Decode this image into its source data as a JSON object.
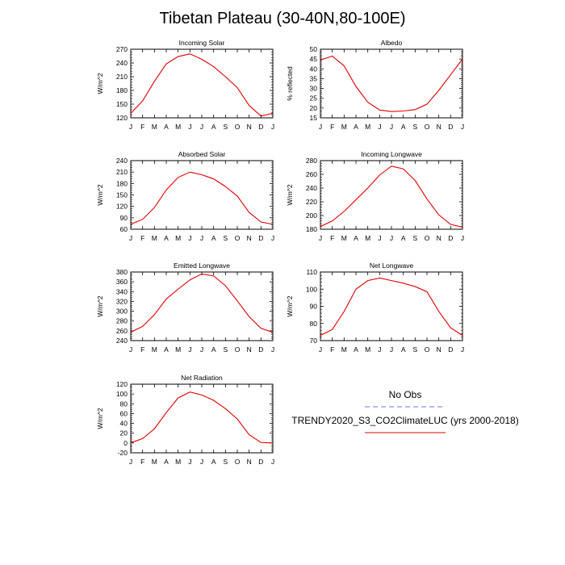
{
  "page": {
    "title": "Tibetan Plateau (30-40N,80-100E)"
  },
  "legend": {
    "entries": [
      {
        "label": "No Obs",
        "color": "#7070f0",
        "style": "dashed"
      },
      {
        "label": "TRENDY2020_S3_CO2ClimateLUC (yrs 2000-2018)",
        "color": "#e00000",
        "style": "solid"
      }
    ]
  },
  "chart_data": [
    {
      "type": "line",
      "title": "Incoming Solar",
      "ylabel": "W/m^2",
      "categories": [
        "J",
        "F",
        "M",
        "A",
        "M",
        "J",
        "J",
        "A",
        "S",
        "O",
        "N",
        "D",
        "J"
      ],
      "ylim": [
        120,
        270
      ],
      "yticks": [
        120,
        150,
        180,
        210,
        240,
        270
      ],
      "series": [
        {
          "color": "#e00000",
          "values": [
            130,
            157,
            200,
            238,
            254,
            260,
            248,
            232,
            210,
            186,
            147,
            124,
            130
          ]
        }
      ]
    },
    {
      "type": "line",
      "title": "Albedo",
      "ylabel": "% reflected",
      "categories": [
        "J",
        "F",
        "M",
        "A",
        "M",
        "J",
        "J",
        "A",
        "S",
        "O",
        "N",
        "D",
        "J"
      ],
      "ylim": [
        15,
        50
      ],
      "yticks": [
        15,
        20,
        25,
        30,
        35,
        40,
        45,
        50
      ],
      "series": [
        {
          "color": "#e00000",
          "values": [
            44.5,
            46.5,
            41.5,
            31,
            23,
            19,
            18.2,
            18.5,
            19.2,
            22,
            29,
            37,
            45
          ]
        }
      ]
    },
    {
      "type": "line",
      "title": "Absorbed Solar",
      "ylabel": "W/m^2",
      "categories": [
        "J",
        "F",
        "M",
        "A",
        "M",
        "J",
        "J",
        "A",
        "S",
        "O",
        "N",
        "D",
        "J"
      ],
      "ylim": [
        60,
        240
      ],
      "yticks": [
        60,
        90,
        120,
        150,
        180,
        210,
        240
      ],
      "series": [
        {
          "color": "#e00000",
          "values": [
            73,
            86,
            117,
            163,
            196,
            210,
            203,
            192,
            172,
            147,
            104,
            79,
            73
          ]
        }
      ]
    },
    {
      "type": "line",
      "title": "Incoming Longwave",
      "ylabel": "W/m^2",
      "categories": [
        "J",
        "F",
        "M",
        "A",
        "M",
        "J",
        "J",
        "A",
        "S",
        "O",
        "N",
        "D",
        "J"
      ],
      "ylim": [
        180,
        280
      ],
      "yticks": [
        180,
        200,
        220,
        240,
        260,
        280
      ],
      "series": [
        {
          "color": "#e00000",
          "values": [
            184,
            192,
            206,
            223,
            240,
            259,
            272,
            268,
            251,
            224,
            201,
            187,
            183
          ]
        }
      ]
    },
    {
      "type": "line",
      "title": "Emitted Longwave",
      "ylabel": "W/m^2",
      "categories": [
        "J",
        "F",
        "M",
        "A",
        "M",
        "J",
        "J",
        "A",
        "S",
        "O",
        "N",
        "D",
        "J"
      ],
      "ylim": [
        240,
        380
      ],
      "yticks": [
        240,
        260,
        280,
        300,
        320,
        340,
        360,
        380
      ],
      "series": [
        {
          "color": "#e00000",
          "values": [
            257,
            269,
            293,
            325,
            345,
            364,
            376,
            372,
            352,
            321,
            289,
            265,
            257
          ]
        }
      ]
    },
    {
      "type": "line",
      "title": "Net Longwave",
      "ylabel": "W/m^2",
      "categories": [
        "J",
        "F",
        "M",
        "A",
        "M",
        "J",
        "J",
        "A",
        "S",
        "O",
        "N",
        "D",
        "J"
      ],
      "ylim": [
        70,
        110
      ],
      "yticks": [
        70,
        80,
        90,
        100,
        110
      ],
      "series": [
        {
          "color": "#e00000",
          "values": [
            73,
            76.5,
            87,
            100,
            105,
            106.5,
            105,
            103.5,
            101.5,
            98.5,
            87,
            77.5,
            73
          ]
        }
      ]
    },
    {
      "type": "line",
      "title": "Net Radiation",
      "ylabel": "W/m^2",
      "categories": [
        "J",
        "F",
        "M",
        "A",
        "M",
        "J",
        "J",
        "A",
        "S",
        "O",
        "N",
        "D",
        "J"
      ],
      "ylim": [
        -20,
        120
      ],
      "yticks": [
        -20,
        0,
        20,
        40,
        60,
        80,
        100,
        120
      ],
      "series": [
        {
          "color": "#e00000",
          "values": [
            0.5,
            9,
            29,
            62,
            92,
            104,
            98,
            87,
            70,
            49,
            17,
            1,
            0
          ]
        }
      ]
    }
  ]
}
